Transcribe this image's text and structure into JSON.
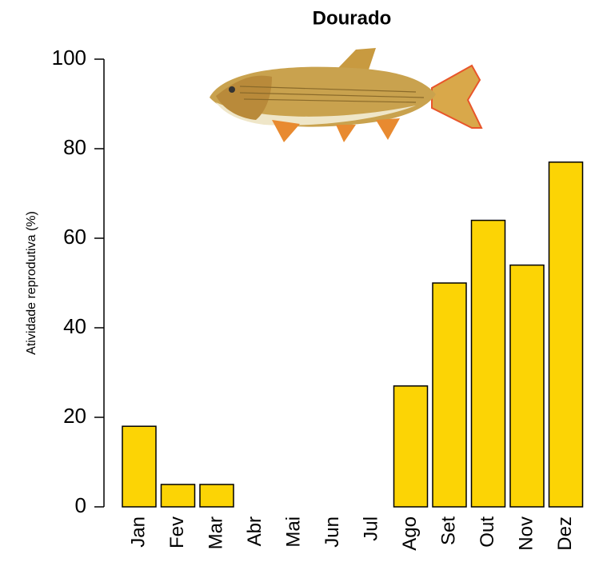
{
  "chart_data": {
    "type": "bar",
    "title": "Dourado",
    "y_label": "Atividade reprodutiva (%)",
    "categories": [
      "Jan",
      "Fev",
      "Mar",
      "Abr",
      "Mai",
      "Jun",
      "Jul",
      "Ago",
      "Set",
      "Out",
      "Nov",
      "Dez"
    ],
    "values": [
      18,
      5,
      5,
      0,
      0,
      0,
      0,
      27,
      50,
      64,
      54,
      77
    ],
    "color": "#fcd405",
    "ylim": [
      0,
      100
    ],
    "yticks": [
      0,
      20,
      40,
      60,
      80,
      100
    ],
    "grid": false
  }
}
